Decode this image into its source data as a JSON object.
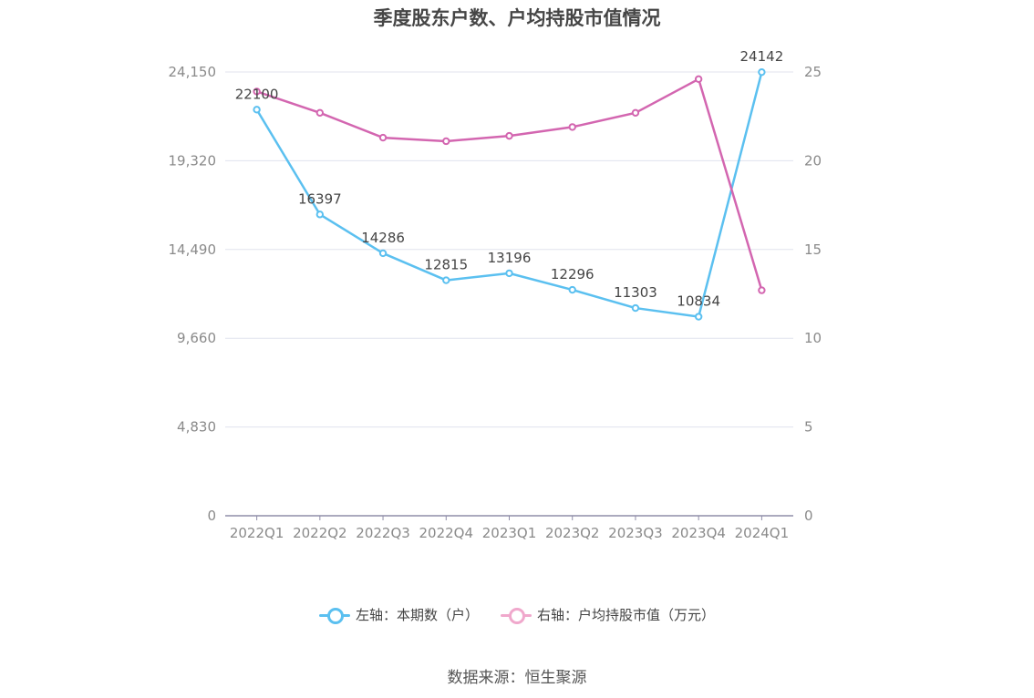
{
  "chart_data": {
    "type": "line",
    "title": "季度股东户数、户均持股市值情况",
    "categories": [
      "2022Q1",
      "2022Q2",
      "2022Q3",
      "2022Q4",
      "2023Q1",
      "2023Q2",
      "2023Q3",
      "2023Q4",
      "2024Q1"
    ],
    "series": [
      {
        "name": "左轴：本期数（户）",
        "axis": "left",
        "color": "#5bc0f0",
        "values": [
          22100,
          16397,
          14286,
          12815,
          13196,
          12296,
          11303,
          10834,
          24142
        ],
        "labels": [
          "22100",
          "16397",
          "14286",
          "12815",
          "13196",
          "12296",
          "11303",
          "10834",
          "24142"
        ]
      },
      {
        "name": "右轴：户均持股市值（万元）",
        "axis": "right",
        "color": "#d366b0",
        "legend_color": "#f0a8cc",
        "values": [
          23.9,
          22.7,
          21.3,
          21.1,
          21.4,
          21.9,
          22.7,
          24.6,
          12.7
        ]
      }
    ],
    "y_left": {
      "ylim": [
        0,
        24150
      ],
      "ticks": [
        "0",
        "4,830",
        "9,660",
        "14,490",
        "19,320",
        "24,150"
      ]
    },
    "y_right": {
      "ylim": [
        0,
        25
      ],
      "ticks": [
        "0",
        "5",
        "10",
        "15",
        "20",
        "25"
      ]
    },
    "grid": true,
    "legend_position": "bottom"
  },
  "source": "数据来源：恒生聚源"
}
